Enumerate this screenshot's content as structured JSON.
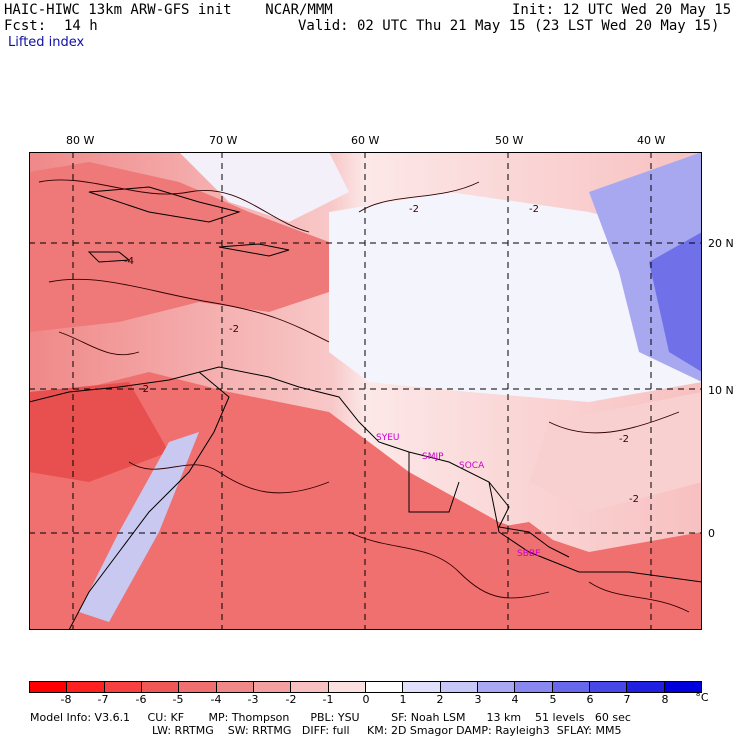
{
  "header": {
    "model_line": "HAIC-HIWC 13km ARW-GFS init    NCAR/MMM",
    "init_line": "Init: 12 UTC Wed 20 May 15",
    "fcst_label": "Fcst:",
    "fcst_value": "14 h",
    "valid_line": "Valid: 02 UTC Thu 21 May 15 (23 LST Wed 20 May 15)",
    "field_name": "Lifted index"
  },
  "map": {
    "longitude_labels": [
      "80 W",
      "70 W",
      "60 W",
      "50 W",
      "40 W"
    ],
    "latitude_labels": [
      "20 N",
      "10 N",
      "0"
    ],
    "stations": [
      {
        "id": "SYEU",
        "color": "#cc00cc"
      },
      {
        "id": "SMJP",
        "color": "#cc00cc"
      },
      {
        "id": "SOCA",
        "color": "#cc00cc"
      },
      {
        "id": "SBBE",
        "color": "#cc00cc"
      }
    ],
    "contour_labels": [
      "-2",
      "-2",
      "-2",
      "-2",
      "-2",
      "-2",
      "-4"
    ],
    "colors": {
      "strong_negative": "#e83030",
      "negative": "#f08080",
      "weak_negative": "#f8c8c8",
      "neutral": "#ffffff",
      "weak_positive": "#c8c8f8",
      "positive": "#6060f0",
      "strong_positive": "#1010d8",
      "grid_line": "#000000",
      "coast_line": "#000000",
      "contour": "#330000"
    }
  },
  "colorbar": {
    "tick_labels": [
      "-8",
      "-7",
      "-6",
      "-5",
      "-4",
      "-3",
      "-2",
      "-1",
      "0",
      "1",
      "2",
      "3",
      "4",
      "5",
      "6",
      "7",
      "8"
    ],
    "unit": "°C",
    "colors": [
      "#ff0000",
      "#ff2020",
      "#f84040",
      "#f05858",
      "#f07070",
      "#f08888",
      "#f4a0a0",
      "#f8c0c0",
      "#fce0e0",
      "#ffffff",
      "#e0e0fc",
      "#c8c8f8",
      "#a8a8f4",
      "#8888f0",
      "#6868ec",
      "#4848e8",
      "#2020e0",
      "#0000dc"
    ]
  },
  "model_info": {
    "line1": "Model Info: V3.6.1     CU: KF       MP: Thompson      PBL: YSU         SF: Noah LSM      13 km    51 levels   60 sec",
    "line2": "LW: RRTMG    SW: RRTMG   DIFF: full     KM: 2D Smagor DAMP: Rayleigh3  SFLAY: MM5"
  }
}
